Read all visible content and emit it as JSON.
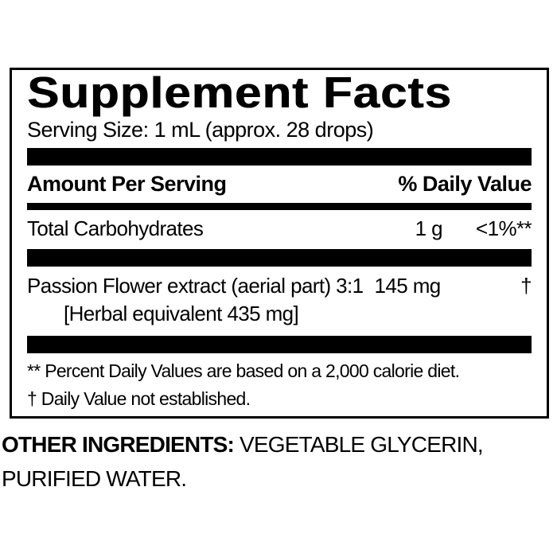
{
  "colors": {
    "ink": "#000000",
    "background": "#ffffff"
  },
  "supplement_facts": {
    "title": "Supplement Facts",
    "serving_size": "Serving Size: 1 mL (approx. 28 drops)",
    "column_headers": {
      "left": "Amount Per Serving",
      "right": "% Daily Value"
    },
    "rows": [
      {
        "name": "Total Carbohydrates",
        "amount": "1 g",
        "daily_value": "<1%**"
      },
      {
        "name": "Passion Flower extract (aerial part) 3:1",
        "amount": "145 mg",
        "daily_value": "†",
        "note": "[Herbal equivalent 435 mg]"
      }
    ],
    "footnotes": [
      "** Percent Daily Values are based on a 2,000 calorie diet.",
      "† Daily Value not established."
    ]
  },
  "other_ingredients": {
    "label": "OTHER INGREDIENTS:",
    "line1_rest": " VEGETABLE GLYCERIN,",
    "line2": "PURIFIED WATER."
  }
}
